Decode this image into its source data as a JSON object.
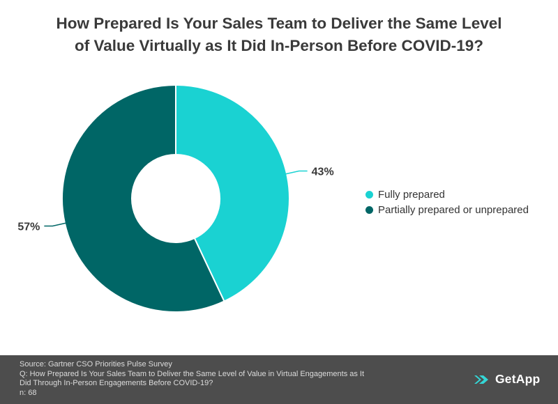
{
  "title": {
    "line1": "How Prepared Is Your Sales Team to Deliver the Same Level",
    "line2": "of Value Virtually as It Did In-Person Before COVID-19?"
  },
  "chart_data": {
    "type": "pie",
    "title": "How Prepared Is Your Sales Team to Deliver the Same Level of Value Virtually as It Did In-Person Before COVID-19?",
    "categories": [
      "Fully prepared",
      "Partially prepared or unprepared"
    ],
    "values": [
      43,
      57
    ],
    "labels": [
      "43%",
      "57%"
    ],
    "colors": [
      "#1ad2d2",
      "#006666"
    ],
    "donut": true,
    "legend_position": "right"
  },
  "footer": {
    "source": "Source: Gartner CSO Priorities Pulse Survey",
    "question_line1": "Q: How Prepared Is Your Sales Team to Deliver the Same Level of Value in Virtual Engagements as It",
    "question_line2": "Did Through In-Person Engagements Before COVID-19?",
    "n": "n: 68",
    "brand": "GetApp"
  }
}
